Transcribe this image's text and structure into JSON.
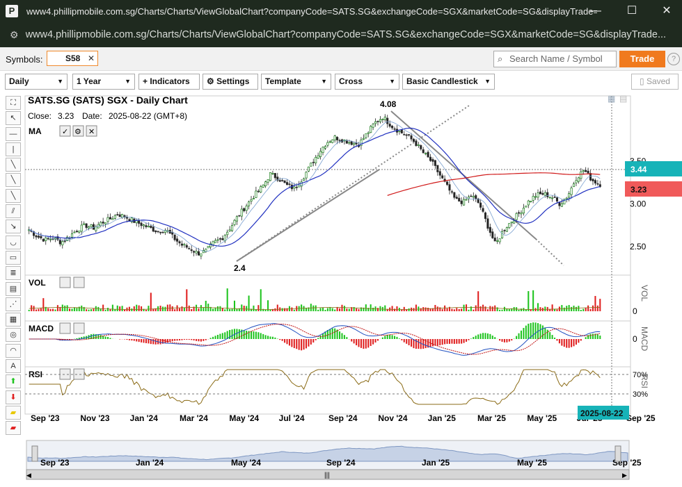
{
  "window": {
    "title": "www4.phillipmobile.com.sg/Charts/Charts/ViewGlobalChart?companyCode=SATS.SG&exchangeCode=SGX&marketCode=SG&displayTrade=tru...",
    "url": "www4.phillipmobile.com.sg/Charts/Charts/ViewGlobalChart?companyCode=SATS.SG&exchangeCode=SGX&marketCode=SG&displayTrade...",
    "logo": "P"
  },
  "symbols": {
    "label": "Symbols:",
    "value": "S58",
    "search_placeholder": "Search Name / Symbol",
    "trade_label": "Trade",
    "help": "?"
  },
  "toolbar": {
    "interval": "Daily",
    "range": "1 Year",
    "indicators": "+ Indicators",
    "settings": "Settings",
    "template": "Template",
    "cross": "Cross",
    "chart_type": "Basic Candlestick",
    "saved": "Saved"
  },
  "colors": {
    "up": "#1ec41e",
    "down": "#e01f1f",
    "ma_blue": "#2030c0",
    "ma_red": "#d01818",
    "rsi": "#8a6a14",
    "price_teal": "#17b3b8",
    "price_red": "#f05a5a"
  },
  "chart_data": {
    "type": "candlestick",
    "title": "SATS.SG (SATS) SGX - Daily Chart",
    "close_label": "Close:",
    "close": "3.23",
    "date_label": "Date:",
    "date": "2025-08-22 (GMT+8)",
    "indicator_ma": "MA",
    "y_ticks": [
      "3.50",
      "3.00",
      "2.50"
    ],
    "ylim": [
      2.2,
      4.2
    ],
    "annotations": {
      "high": "4.08",
      "low": "2.4"
    },
    "price_labels": {
      "crosshair": "3.44",
      "last": "3.23"
    },
    "x_ticks": [
      "Sep '23",
      "Nov '23",
      "Jan '24",
      "Mar '24",
      "May '24",
      "Jul '24",
      "Sep '24",
      "Nov '24",
      "Jan '25",
      "Mar '25",
      "May '25",
      "Jul '25",
      "Sep '25"
    ],
    "crosshair_date": "2025-08-22",
    "close_series": [
      2.7,
      2.62,
      2.58,
      2.6,
      2.55,
      2.62,
      2.7,
      2.75,
      2.72,
      2.78,
      2.82,
      2.88,
      2.85,
      2.8,
      2.76,
      2.72,
      2.68,
      2.7,
      2.6,
      2.52,
      2.48,
      2.42,
      2.45,
      2.55,
      2.6,
      2.72,
      2.86,
      2.98,
      3.1,
      3.2,
      3.35,
      3.3,
      3.22,
      3.18,
      3.3,
      3.45,
      3.6,
      3.72,
      3.78,
      3.75,
      3.72,
      3.7,
      3.82,
      3.95,
      4.02,
      3.92,
      3.85,
      3.8,
      3.72,
      3.6,
      3.5,
      3.35,
      3.2,
      3.05,
      3.02,
      3.1,
      3.0,
      2.75,
      2.52,
      2.7,
      2.8,
      2.9,
      3.02,
      3.1,
      3.12,
      3.08,
      3.0,
      3.1,
      3.3,
      3.4,
      3.28,
      3.23
    ],
    "panels": {
      "vol": {
        "label": "VOL",
        "axis_label": "VOL",
        "zero": "0"
      },
      "macd": {
        "label": "MACD",
        "axis_label": "MACD",
        "zero": "0"
      },
      "rsi": {
        "label": "RSI",
        "axis_label": "RSI",
        "hi": "70%",
        "lo": "30%"
      }
    },
    "navigator_ticks": [
      "Sep '23",
      "Jan '24",
      "May '24",
      "Sep '24",
      "Jan '25",
      "May '25",
      "Sep '25"
    ]
  }
}
